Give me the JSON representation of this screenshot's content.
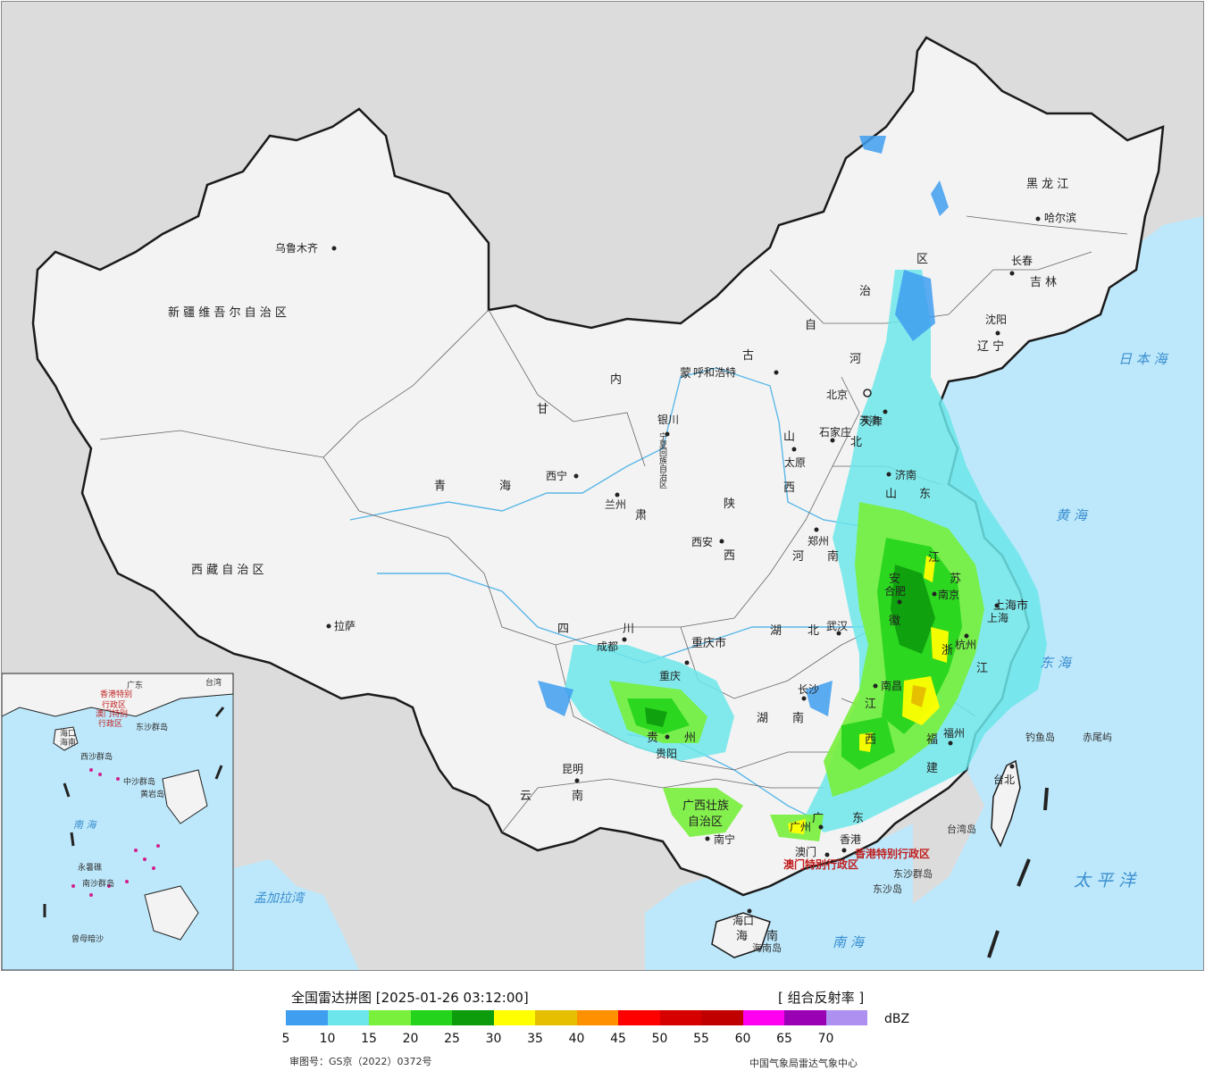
{
  "map": {
    "colors": {
      "background": "#dcdcdc",
      "sea": "#bde8fb",
      "land": "#f3f3f3",
      "border": "#1a1a1a",
      "river": "#5bb8e8",
      "label": "#222222",
      "sea_label": "#3a8ed0",
      "hk_macau_label": "#c01f1f",
      "islands": "#d0208c"
    },
    "province_labels": [
      "新 疆 维 吾 尔 自 治 区",
      "西 藏 自 治 区",
      "青",
      "海",
      "甘",
      "肃",
      "内",
      "蒙",
      "古",
      "自",
      "治",
      "区",
      "河",
      "黑 龙 江",
      "吉 林",
      "辽 宁",
      "北",
      "山",
      "西",
      "陕",
      "西",
      "山",
      "东",
      "河",
      "南",
      "四",
      "川",
      "重庆市",
      "湖",
      "北",
      "安",
      "徽",
      "江",
      "苏",
      "浙",
      "江",
      "湖",
      "南",
      "江",
      "西",
      "福",
      "建",
      "贵",
      "州",
      "云",
      "南",
      "广西壮族",
      "自治区",
      "广",
      "东",
      "海",
      "南",
      "上海市",
      "天津",
      "宁夏回族自治区"
    ],
    "cities": [
      "乌鲁木齐",
      "拉萨",
      "西宁",
      "兰州",
      "银川",
      "呼和浩特",
      "西安",
      "太原",
      "石家庄",
      "北京",
      "天津",
      "济南",
      "郑州",
      "合肥",
      "南京",
      "上海",
      "杭州",
      "武汉",
      "长沙",
      "南昌",
      "福州",
      "台北",
      "重庆",
      "成都",
      "贵阳",
      "昆明",
      "南宁",
      "广州",
      "香港",
      "澳门",
      "海口",
      "沈阳",
      "长春",
      "哈尔滨"
    ],
    "special_regions": [
      "香港特别行政区",
      "澳门特别行政区"
    ],
    "sea_labels": [
      "日 本 海",
      "黄 海",
      "东 海",
      "南 海",
      "太 平 洋",
      "孟加拉湾"
    ],
    "island_labels": [
      "台湾岛",
      "钓鱼岛",
      "赤尾屿",
      "东沙群岛",
      "东沙岛",
      "海南岛"
    ],
    "inset": {
      "labels": [
        "广东",
        "香港特别",
        "行政区",
        "澳门特别",
        "行政区",
        "东沙群岛",
        "海口",
        "海南",
        "西沙群岛",
        "中沙群岛",
        "黄岩岛",
        "南 海",
        "南沙群岛",
        "永暑礁",
        "曾母暗沙",
        "台湾"
      ]
    }
  },
  "legend": {
    "title": "全国雷达拼图 [2025-01-26 03:12:00]",
    "product": "[ 组合反射率 ]",
    "unit": "dBZ",
    "colors": [
      "#3f9ef0",
      "#6ce6ea",
      "#78f03c",
      "#24d41c",
      "#0c9c0c",
      "#ffff00",
      "#e6c000",
      "#ff9000",
      "#ff0000",
      "#d60000",
      "#c00000",
      "#ff00f0",
      "#9a00b4",
      "#ae90f0"
    ],
    "ticks": [
      "5",
      "10",
      "15",
      "20",
      "25",
      "30",
      "35",
      "40",
      "45",
      "50",
      "55",
      "60",
      "65",
      "70"
    ],
    "review_number": "审图号：GS京（2022）0372号",
    "credit": "中国气象局雷达气象中心"
  }
}
